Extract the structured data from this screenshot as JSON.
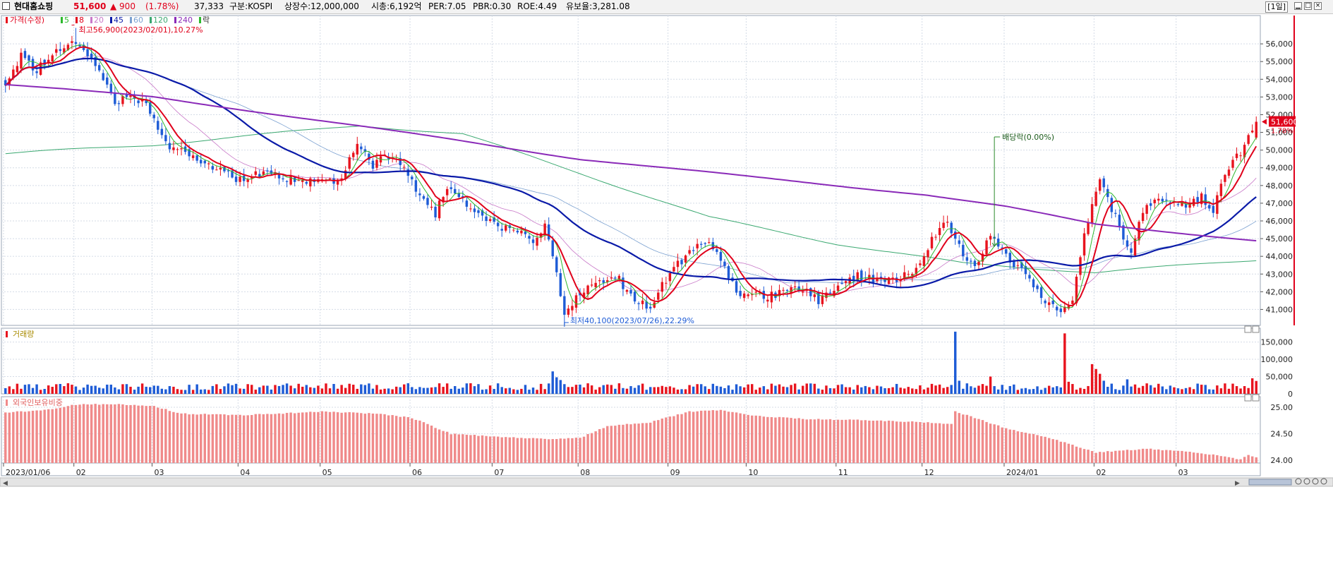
{
  "header": {
    "stock_name": "현대홈쇼핑",
    "price": "51,600",
    "change": "▲ 900",
    "change_pct": "(1.78%)",
    "volume": "37,333",
    "market": "구분:KOSPI",
    "listed_shares": "상장수:12,000,000",
    "market_cap": "시총:6,192억",
    "per": "PER:7.05",
    "pbr": "PBR:0.30",
    "roe": "ROE:4.49",
    "float": "유보율:3,281.08",
    "period": "[1일]"
  },
  "colors": {
    "up": "#e8141e",
    "down": "#1e5cd6",
    "ma5": "#2db82d",
    "ma8": "#e0001b",
    "ma20": "#c878c8",
    "ma45": "#0a1aa8",
    "ma60": "#7aa0d0",
    "ma120": "#3aa870",
    "ma240": "#8a2ab8",
    "foreign": "#f08a8a",
    "grid": "#d4dbe6"
  },
  "legend": {
    "price_label": "가격(수정)",
    "ma_labels": [
      "5",
      "8",
      "20",
      "45",
      "60",
      "120",
      "240"
    ],
    "ex_label": "락"
  },
  "chart_data": [
    {
      "type": "candlestick",
      "title": "",
      "xlabel": "",
      "ylabel": "",
      "ylim": [
        40100,
        57600
      ],
      "y_ticks": [
        41000,
        42000,
        43000,
        44000,
        45000,
        46000,
        47000,
        48000,
        49000,
        50000,
        51000,
        52000,
        53000,
        54000,
        55000,
        56000
      ],
      "y_tick_labels": [
        "41,000",
        "42,000",
        "43,000",
        "44,000",
        "45,000",
        "46,000",
        "47,000",
        "48,000",
        "49,000",
        "50,000",
        "51,000",
        "52,000",
        "53,000",
        "54,000",
        "55,000",
        "56,000"
      ],
      "x_range": [
        "2023/01/06",
        "2024/03/29"
      ],
      "x_ticks": [
        "2023/01/06",
        "2023/02",
        "2023/03",
        "2023/04",
        "2023/05",
        "2023/06",
        "2023/07",
        "2023/08",
        "2023/09",
        "2023/10",
        "2023/11",
        "2023/12",
        "2024/01",
        "2024/02",
        "2024/03"
      ],
      "x_tick_labels": [
        "2023/01/06",
        "02",
        "03",
        "04",
        "05",
        "06",
        "07",
        "08",
        "09",
        "10",
        "11",
        "12",
        "2024/01",
        "02",
        "03"
      ],
      "close_anchors": [
        [
          "2023/01/06",
          53700
        ],
        [
          "2023/01/12",
          55400
        ],
        [
          "2023/01/18",
          54500
        ],
        [
          "2023/01/26",
          55800
        ],
        [
          "2023/02/01",
          56200
        ],
        [
          "2023/02/07",
          55100
        ],
        [
          "2023/02/10",
          54200
        ],
        [
          "2023/02/15",
          52700
        ],
        [
          "2023/02/22",
          53100
        ],
        [
          "2023/02/28",
          52200
        ],
        [
          "2023/03/06",
          50400
        ],
        [
          "2023/03/13",
          49800
        ],
        [
          "2023/03/20",
          49300
        ],
        [
          "2023/03/27",
          48700
        ],
        [
          "2023/04/03",
          48200
        ],
        [
          "2023/04/10",
          48800
        ],
        [
          "2023/04/17",
          48400
        ],
        [
          "2023/04/24",
          48200
        ],
        [
          "2023/05/02",
          48100
        ],
        [
          "2023/05/08",
          48500
        ],
        [
          "2023/05/12",
          50300
        ],
        [
          "2023/05/18",
          49200
        ],
        [
          "2023/05/24",
          49700
        ],
        [
          "2023/05/30",
          48900
        ],
        [
          "2023/06/05",
          47500
        ],
        [
          "2023/06/09",
          46400
        ],
        [
          "2023/06/14",
          47900
        ],
        [
          "2023/06/20",
          47100
        ],
        [
          "2023/06/26",
          46300
        ],
        [
          "2023/07/03",
          45600
        ],
        [
          "2023/07/10",
          45500
        ],
        [
          "2023/07/14",
          44800
        ],
        [
          "2023/07/19",
          45600
        ],
        [
          "2023/07/24",
          43000
        ],
        [
          "2023/07/26",
          40700
        ],
        [
          "2023/07/31",
          41800
        ],
        [
          "2023/08/07",
          42300
        ],
        [
          "2023/08/14",
          42900
        ],
        [
          "2023/08/21",
          41600
        ],
        [
          "2023/08/25",
          41000
        ],
        [
          "2023/08/30",
          42300
        ],
        [
          "2023/09/05",
          43600
        ],
        [
          "2023/09/11",
          44300
        ],
        [
          "2023/09/15",
          45000
        ],
        [
          "2023/09/20",
          43600
        ],
        [
          "2023/09/26",
          42000
        ],
        [
          "2023/10/05",
          41700
        ],
        [
          "2023/10/12",
          41900
        ],
        [
          "2023/10/18",
          42200
        ],
        [
          "2023/10/25",
          41500
        ],
        [
          "2023/11/01",
          42200
        ],
        [
          "2023/11/08",
          42900
        ],
        [
          "2023/11/15",
          42700
        ],
        [
          "2023/11/22",
          42600
        ],
        [
          "2023/11/29",
          43200
        ],
        [
          "2023/12/05",
          44900
        ],
        [
          "2023/12/11",
          46000
        ],
        [
          "2023/12/15",
          44100
        ],
        [
          "2023/12/20",
          43400
        ],
        [
          "2023/12/26",
          45300
        ],
        [
          "2024/01/03",
          43600
        ],
        [
          "2024/01/10",
          42400
        ],
        [
          "2024/01/16",
          41300
        ],
        [
          "2024/01/19",
          40800
        ],
        [
          "2024/01/24",
          41500
        ],
        [
          "2024/01/29",
          45300
        ],
        [
          "2024/02/02",
          48300
        ],
        [
          "2024/02/07",
          46700
        ],
        [
          "2024/02/14",
          44200
        ],
        [
          "2024/02/19",
          46600
        ],
        [
          "2024/02/26",
          47200
        ],
        [
          "2024/03/04",
          46900
        ],
        [
          "2024/03/11",
          47400
        ],
        [
          "2024/03/14",
          46400
        ],
        [
          "2024/03/19",
          48800
        ],
        [
          "2024/03/25",
          49800
        ],
        [
          "2024/03/29",
          51600
        ]
      ],
      "ma120_anchors": [
        [
          "2023/01/06",
          49800
        ],
        [
          "2023/03/01",
          50300
        ],
        [
          "2023/05/15",
          51400
        ],
        [
          "2023/06/20",
          50900
        ],
        [
          "2023/08/01",
          48700
        ],
        [
          "2023/09/15",
          46200
        ],
        [
          "2023/11/01",
          44700
        ],
        [
          "2023/12/15",
          43600
        ],
        [
          "2024/02/01",
          43100
        ],
        [
          "2024/03/29",
          43800
        ]
      ],
      "ma240_anchors": [
        [
          "2023/01/06",
          53700
        ],
        [
          "2023/03/01",
          53000
        ],
        [
          "2023/04/15",
          52000
        ],
        [
          "2023/06/15",
          50600
        ],
        [
          "2023/08/01",
          49500
        ],
        [
          "2023/10/01",
          48500
        ],
        [
          "2023/12/01",
          47500
        ],
        [
          "2024/01/01",
          46800
        ],
        [
          "2024/02/01",
          45800
        ],
        [
          "2024/03/29",
          44900
        ]
      ],
      "annotations": [
        {
          "text": "최고56,900(2023/02/01),10.27%",
          "date": "2023/02/01",
          "value": 56900
        },
        {
          "text": "최저40,100(2023/07/26),22.29%",
          "date": "2023/07/26",
          "value": 40100
        },
        {
          "text": "배당락(0.00%)",
          "date": "2023/12/27",
          "value": 44400
        }
      ],
      "last_price": {
        "value": "51,600",
        "pct": "1.78%"
      }
    },
    {
      "type": "bar",
      "title": "거래량",
      "ylim": [
        0,
        190000
      ],
      "y_ticks": [
        0,
        50000,
        100000,
        150000
      ],
      "y_tick_labels": [
        "0",
        "50,000",
        "100,000",
        "150,000"
      ],
      "typical_volume": 22000,
      "spikes": [
        [
          "2023/07/21",
          65000
        ],
        [
          "2023/07/24",
          48000
        ],
        [
          "2023/07/25",
          40000
        ],
        [
          "2023/12/13",
          180000
        ],
        [
          "2023/12/14",
          38000
        ],
        [
          "2023/12/26",
          50000
        ],
        [
          "2024/01/22",
          175000
        ],
        [
          "2024/01/23",
          35000
        ],
        [
          "2024/01/31",
          86000
        ],
        [
          "2024/02/01",
          72000
        ],
        [
          "2024/02/02",
          58000
        ],
        [
          "2024/02/05",
          38000
        ],
        [
          "2024/02/13",
          42000
        ],
        [
          "2024/03/28",
          45000
        ],
        [
          "2024/03/29",
          37333
        ]
      ]
    },
    {
      "type": "bar",
      "title": "외국인보유비중",
      "ylim": [
        23.95,
        25.2
      ],
      "y_ticks": [
        24.0,
        24.5,
        25.0
      ],
      "y_tick_labels": [
        "24.00",
        "24.50",
        "25.00"
      ],
      "anchors": [
        [
          "2023/01/06",
          24.9
        ],
        [
          "2023/01/20",
          24.95
        ],
        [
          "2023/02/01",
          25.05
        ],
        [
          "2023/02/15",
          25.06
        ],
        [
          "2023/03/01",
          25.02
        ],
        [
          "2023/03/10",
          24.88
        ],
        [
          "2023/04/01",
          24.85
        ],
        [
          "2023/05/01",
          24.92
        ],
        [
          "2023/05/20",
          24.88
        ],
        [
          "2023/06/01",
          24.8
        ],
        [
          "2023/06/15",
          24.5
        ],
        [
          "2023/07/01",
          24.45
        ],
        [
          "2023/07/20",
          24.4
        ],
        [
          "2023/08/01",
          24.42
        ],
        [
          "2023/08/10",
          24.65
        ],
        [
          "2023/08/25",
          24.72
        ],
        [
          "2023/09/10",
          24.92
        ],
        [
          "2023/09/20",
          24.95
        ],
        [
          "2023/10/01",
          24.85
        ],
        [
          "2023/10/20",
          24.78
        ],
        [
          "2023/11/10",
          24.76
        ],
        [
          "2023/11/30",
          24.72
        ],
        [
          "2023/12/12",
          24.68
        ],
        [
          "2023/12/13",
          24.92
        ],
        [
          "2023/12/20",
          24.8
        ],
        [
          "2024/01/01",
          24.6
        ],
        [
          "2024/01/15",
          24.45
        ],
        [
          "2024/02/01",
          24.15
        ],
        [
          "2024/02/20",
          24.22
        ],
        [
          "2024/03/10",
          24.15
        ],
        [
          "2024/03/25",
          24.02
        ],
        [
          "2024/03/27",
          24.1
        ],
        [
          "2024/03/29",
          24.05
        ]
      ]
    }
  ]
}
